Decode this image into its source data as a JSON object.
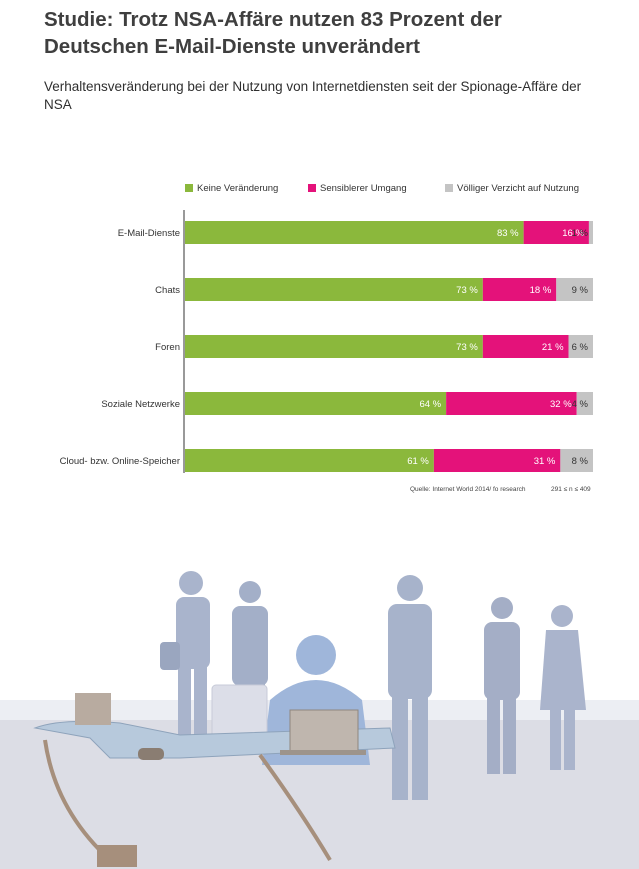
{
  "title": "Studie: Trotz NSA-Affäre nutzen 83 Prozent der Deutschen E-Mail-Dienste unverändert",
  "subtitle": "Verhaltensveränderung bei der Nutzung von Internetdiensten seit der Spionage-Affäre der NSA",
  "source": "Quelle: Internet World 2014/ fo research",
  "sample": "291 ≤ n ≤ 409",
  "chart_data": {
    "type": "bar",
    "orientation": "horizontal",
    "stacked": true,
    "title": "Studie: Trotz NSA-Affäre nutzen 83 Prozent der Deutschen E-Mail-Dienste unverändert",
    "subtitle": "Verhaltensveränderung bei der Nutzung von Internetdiensten seit der Spionage-Affäre der NSA",
    "categories": [
      "E-Mail-Dienste",
      "Chats",
      "Foren",
      "Soziale Netzwerke",
      "Cloud- bzw. Online-Speicher"
    ],
    "series": [
      {
        "name": "Keine Veränderung",
        "color": "#8bb83c",
        "values": [
          83,
          73,
          73,
          64,
          61
        ]
      },
      {
        "name": "Sensiblerer Umgang",
        "color": "#e4127a",
        "values": [
          16,
          18,
          21,
          32,
          31
        ]
      },
      {
        "name": "Völliger Verzicht auf Nutzung",
        "color": "#c4c4c4",
        "values": [
          1,
          9,
          6,
          4,
          8
        ]
      }
    ],
    "unit": "%",
    "legend_position": "top",
    "grid": false,
    "xlim": [
      0,
      100
    ]
  },
  "colors": {
    "green": "#8bb83c",
    "magenta": "#e4127a",
    "grey": "#c4c4c4",
    "figures": "#a9b4cc",
    "desk": "#b7c9dc"
  }
}
